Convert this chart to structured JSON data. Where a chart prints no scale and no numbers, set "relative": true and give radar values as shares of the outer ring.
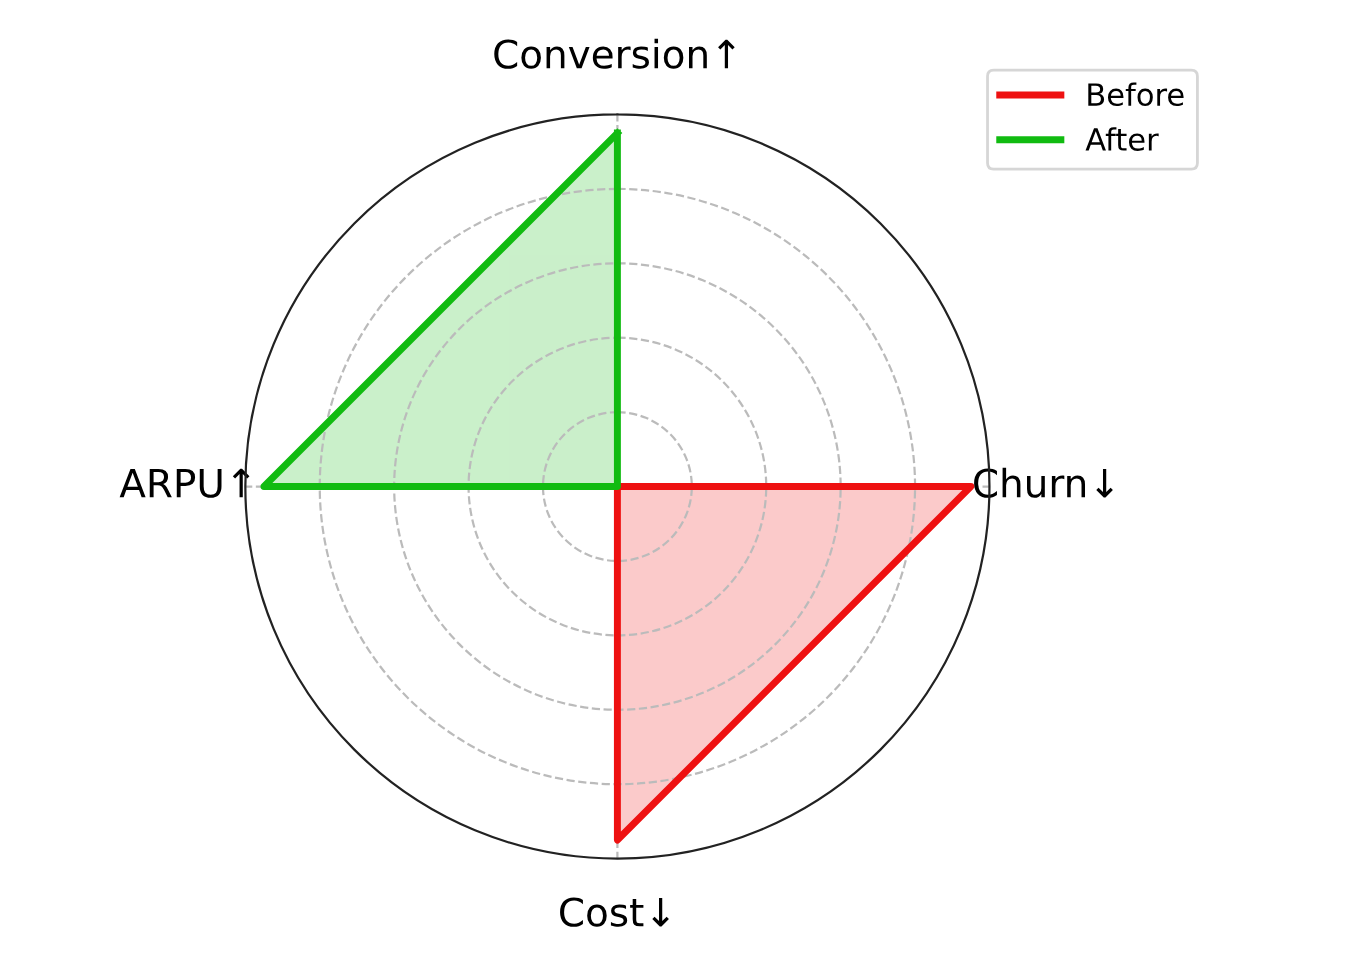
{
  "chart_data": {
    "type": "radar",
    "relative": true,
    "categories": [
      "Conversion↑",
      "Churn↓",
      "Cost↓",
      "ARPU↑"
    ],
    "series": [
      {
        "name": "Before",
        "color": "#ee1111",
        "values": [
          0,
          0.95,
          0.95,
          0
        ]
      },
      {
        "name": "After",
        "color": "#11bb11",
        "values": [
          0.95,
          0,
          0,
          0.95
        ]
      }
    ],
    "grid": true,
    "legend": "top right",
    "line_style": "solid",
    "marker": "none"
  }
}
